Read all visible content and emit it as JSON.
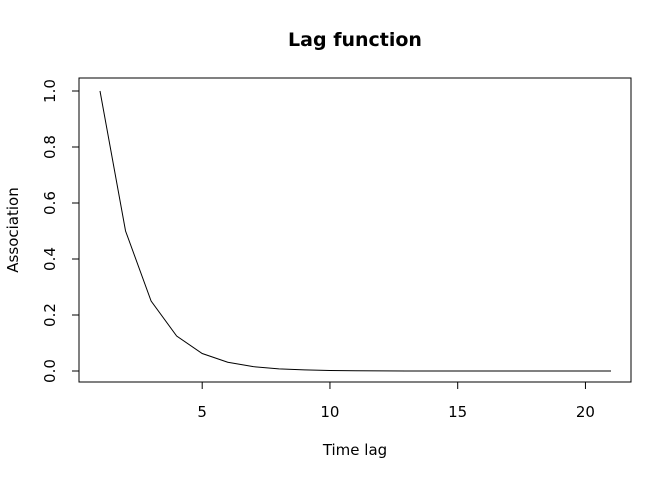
{
  "chart_data": {
    "type": "line",
    "title": "Lag function",
    "xlabel": "Time lag",
    "ylabel": "Association",
    "xlim": [
      1,
      21
    ],
    "ylim": [
      0,
      1
    ],
    "x_ticks": [
      5,
      10,
      15,
      20
    ],
    "y_ticks": [
      0.0,
      0.2,
      0.4,
      0.6,
      0.8,
      1.0
    ],
    "y_tick_labels": [
      "0.0",
      "0.2",
      "0.4",
      "0.6",
      "0.8",
      "1.0"
    ],
    "grid": false,
    "series": [
      {
        "color": "#000000",
        "x": [
          1,
          2,
          3,
          4,
          5,
          6,
          7,
          8,
          9,
          10,
          11,
          12,
          13,
          14,
          15,
          16,
          17,
          18,
          19,
          20,
          21
        ],
        "y": [
          1.0,
          0.5,
          0.25,
          0.125,
          0.0625,
          0.03125,
          0.015625,
          0.0078,
          0.0039,
          0.002,
          0.001,
          0.0005,
          0.0002,
          0.0001,
          0.0001,
          0.0,
          0.0,
          0.0,
          0.0,
          0.0,
          0.0
        ]
      }
    ]
  }
}
